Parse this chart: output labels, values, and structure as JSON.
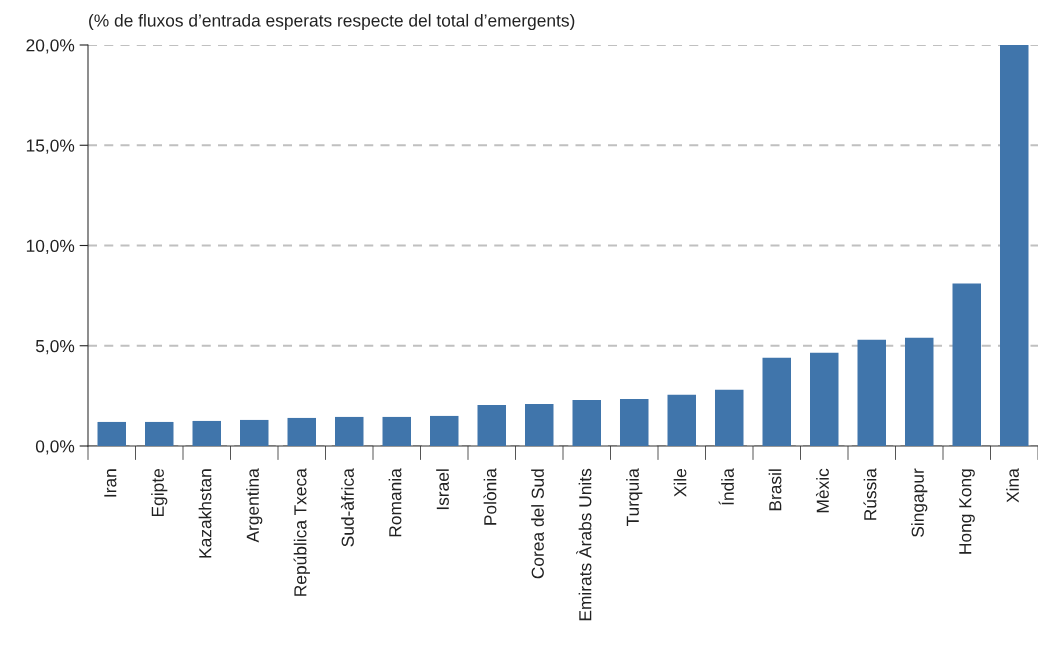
{
  "chart_data": {
    "type": "bar",
    "title": "(% de fluxos d’entrada esperats respecte del total d’emergents)",
    "categories": [
      "Iran",
      "Egipte",
      "Kazakhstan",
      "Argentina",
      "República Txeca",
      "Sud-àfrica",
      "Romania",
      "Israel",
      "Polònia",
      "Corea del Sud",
      "Emirats Àrabs Units",
      "Turquia",
      "Xile",
      "Índia",
      "Brasil",
      "Mèxic",
      "Rússia",
      "Singapur",
      "Hong Kong",
      "Xina"
    ],
    "values": [
      1.2,
      1.2,
      1.25,
      1.3,
      1.4,
      1.45,
      1.45,
      1.5,
      2.05,
      2.1,
      2.3,
      2.35,
      2.55,
      2.8,
      4.4,
      4.65,
      5.3,
      5.4,
      8.1,
      20.0
    ],
    "color": "#4075ab",
    "ylim": [
      0,
      20
    ],
    "yticks": [
      {
        "value": 0,
        "label": "0,0%"
      },
      {
        "value": 5,
        "label": "5,0%"
      },
      {
        "value": 10,
        "label": "10,0%"
      },
      {
        "value": 15,
        "label": "15,0%"
      },
      {
        "value": 20,
        "label": "20,0%"
      }
    ],
    "grid": "y"
  }
}
